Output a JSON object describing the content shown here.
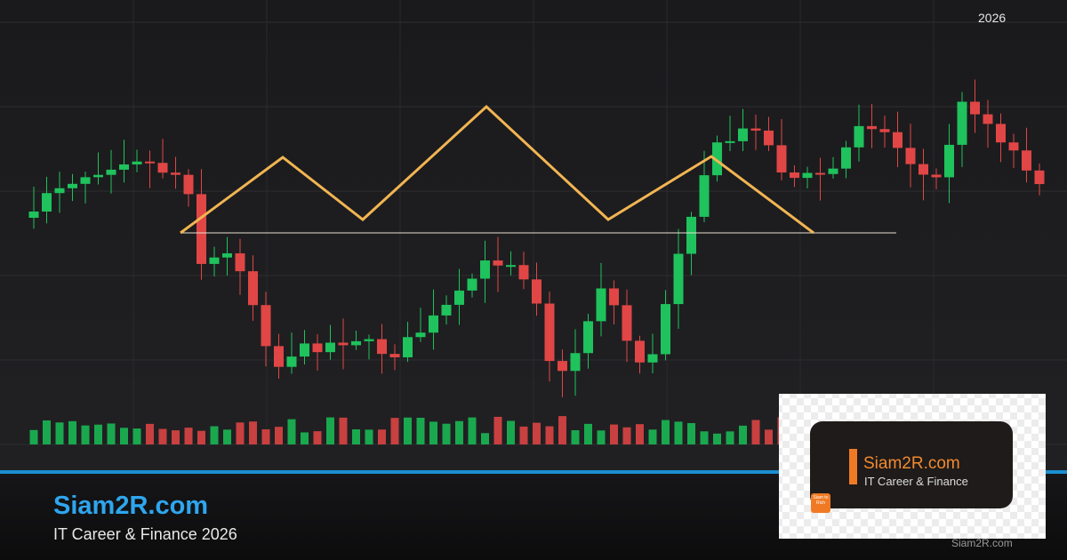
{
  "header": {
    "year": "2026"
  },
  "footer": {
    "site": "Siam2R.com",
    "tagline": "IT Career & Finance 2026",
    "watermark": "Siam2R.com"
  },
  "logo": {
    "title": "Siam2R.com",
    "subtitle": "IT Career & Finance",
    "badge": "Siam to Rich"
  }
}
